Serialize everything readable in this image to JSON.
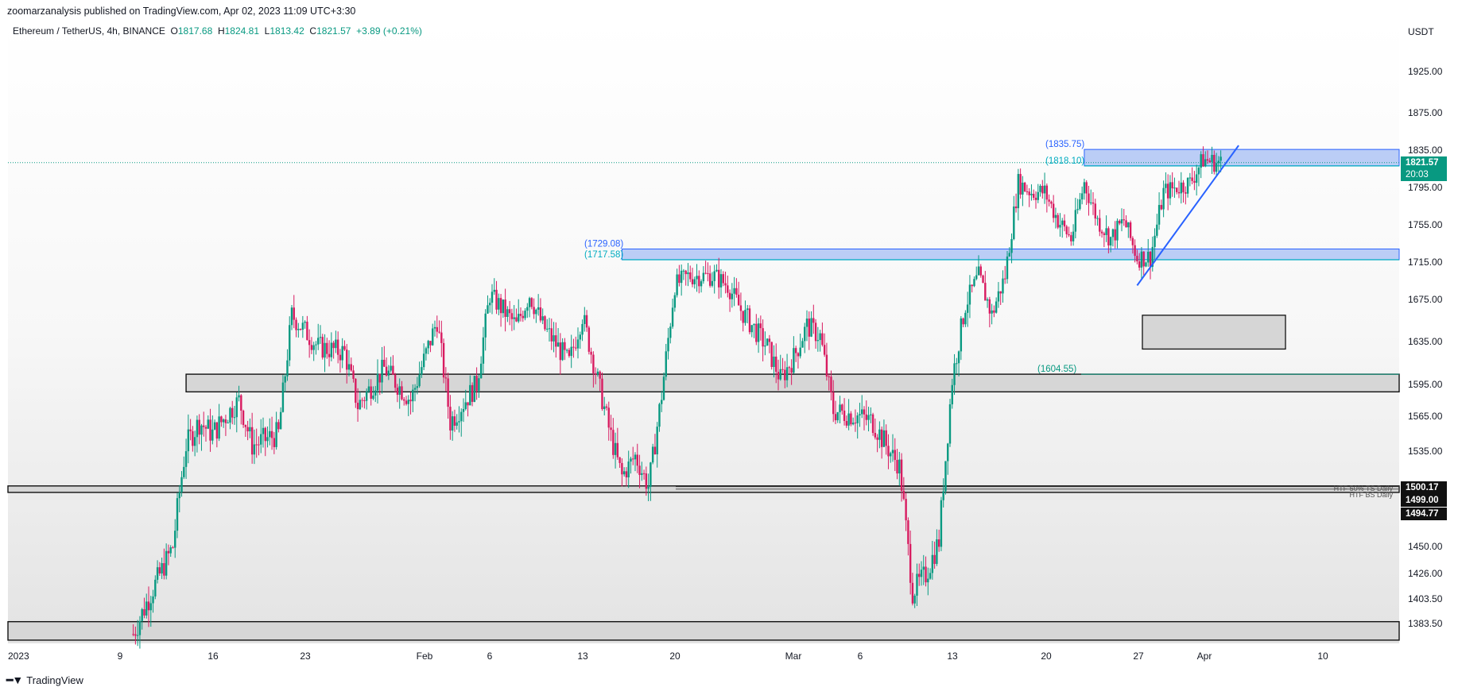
{
  "header": {
    "publisher_line": "zoomarzanalysis published on TradingView.com, Apr 02, 2023 11:09 UTC+3:30"
  },
  "legend": {
    "symbol": "Ethereum / TetherUS, 4h, BINANCE",
    "open_k": "O",
    "open": "1817.68",
    "high_k": "H",
    "high": "1824.81",
    "low_k": "L",
    "low": "1813.42",
    "close_k": "C",
    "close": "1821.57",
    "change": "+3.89 (+0.21%)"
  },
  "currency": "USDT",
  "current_price": {
    "price": "1821.57",
    "countdown": "20:03"
  },
  "black_tags": [
    "1500.17",
    "1499.00",
    "1494.77"
  ],
  "footer": {
    "brand": "TradingView"
  },
  "colors": {
    "up": "#089981",
    "down": "#d81b60",
    "accent_blue": "#2962ff",
    "zone_blue": "#bbcdf6",
    "zone_gray": "#d6d6d6"
  },
  "chart_data": {
    "type": "candlestick",
    "instrument": "Ethereum / TetherUS",
    "interval": "4h",
    "exchange": "BINANCE",
    "y_ticks": [
      "1925.00",
      "1875.00",
      "1835.00",
      "1795.00",
      "1755.00",
      "1715.00",
      "1675.00",
      "1635.00",
      "1595.00",
      "1565.00",
      "1535.00",
      "1500.00",
      "1450.00",
      "1426.00",
      "1403.50",
      "1383.50"
    ],
    "x_ticks": [
      "2023",
      "9",
      "16",
      "23",
      "Feb",
      "6",
      "13",
      "20",
      "Mar",
      "6",
      "13",
      "20",
      "27",
      "Apr",
      "10"
    ],
    "price_labels": [
      {
        "text": "(1835.75)",
        "color": "#2962ff"
      },
      {
        "text": "(1818.10)",
        "color": "#00acc1"
      },
      {
        "text": "(1729.08)",
        "color": "#2962ff"
      },
      {
        "text": "(1717.58)",
        "color": "#00acc1"
      },
      {
        "text": "(1604.55)",
        "color": "#089981"
      }
    ],
    "right_notes": [
      "HTF 50% TS Daily",
      "HTF BS Daily"
    ],
    "zones": [
      {
        "kind": "blue",
        "top": 1835.75,
        "bottom": 1818.1
      },
      {
        "kind": "blue",
        "top": 1729.08,
        "bottom": 1717.58
      },
      {
        "kind": "gray",
        "top": 1604.55,
        "bottom": 1588.0
      },
      {
        "kind": "gray",
        "top": 1500.17,
        "bottom": 1494.77
      },
      {
        "kind": "gray",
        "top": 1385.0,
        "bottom": 1370.0
      },
      {
        "kind": "gray-box",
        "top": 1660.0,
        "bottom": 1628.0
      }
    ],
    "trendline": {
      "from": {
        "date": "Mar 27",
        "price": 1690
      },
      "to": {
        "date": "Apr 02",
        "price": 1840
      }
    },
    "anchors": [
      {
        "date": "Jan 10",
        "price": 1375
      },
      {
        "date": "Jan 11",
        "price": 1400
      },
      {
        "date": "Jan 13",
        "price": 1450
      },
      {
        "date": "Jan 14",
        "price": 1540
      },
      {
        "date": "Jan 15",
        "price": 1560
      },
      {
        "date": "Jan 16",
        "price": 1550
      },
      {
        "date": "Jan 18",
        "price": 1580
      },
      {
        "date": "Jan 19",
        "price": 1540
      },
      {
        "date": "Jan 21",
        "price": 1550
      },
      {
        "date": "Jan 22",
        "price": 1660
      },
      {
        "date": "Jan 24",
        "price": 1630
      },
      {
        "date": "Jan 26",
        "price": 1625
      },
      {
        "date": "Jan 27",
        "price": 1575
      },
      {
        "date": "Jan 29",
        "price": 1610
      },
      {
        "date": "Jan 31",
        "price": 1580
      },
      {
        "date": "Feb 02",
        "price": 1655
      },
      {
        "date": "Feb 03",
        "price": 1560
      },
      {
        "date": "Feb 05",
        "price": 1595
      },
      {
        "date": "Feb 06",
        "price": 1680
      },
      {
        "date": "Feb 08",
        "price": 1650
      },
      {
        "date": "Feb 09",
        "price": 1680
      },
      {
        "date": "Feb 10",
        "price": 1650
      },
      {
        "date": "Feb 12",
        "price": 1615
      },
      {
        "date": "Feb 13",
        "price": 1660
      },
      {
        "date": "Feb 15",
        "price": 1555
      },
      {
        "date": "Feb 16",
        "price": 1510
      },
      {
        "date": "Feb 17",
        "price": 1530
      },
      {
        "date": "Feb 18",
        "price": 1500
      },
      {
        "date": "Feb 19",
        "price": 1585
      },
      {
        "date": "Feb 20",
        "price": 1690
      },
      {
        "date": "Feb 21",
        "price": 1700
      },
      {
        "date": "Feb 23",
        "price": 1700
      },
      {
        "date": "Feb 24",
        "price": 1690
      },
      {
        "date": "Feb 25",
        "price": 1665
      },
      {
        "date": "Feb 27",
        "price": 1630
      },
      {
        "date": "Feb 28",
        "price": 1600
      },
      {
        "date": "Mar 01",
        "price": 1620
      },
      {
        "date": "Mar 02",
        "price": 1650
      },
      {
        "date": "Mar 03",
        "price": 1640
      },
      {
        "date": "Mar 04",
        "price": 1570
      },
      {
        "date": "Mar 06",
        "price": 1565
      },
      {
        "date": "Mar 07",
        "price": 1560
      },
      {
        "date": "Mar 08",
        "price": 1540
      },
      {
        "date": "Mar 09",
        "price": 1520
      },
      {
        "date": "Mar 10",
        "price": 1410
      },
      {
        "date": "Mar 11",
        "price": 1425
      },
      {
        "date": "Mar 12",
        "price": 1455
      },
      {
        "date": "Mar 13",
        "price": 1600
      },
      {
        "date": "Mar 14",
        "price": 1670
      },
      {
        "date": "Mar 15",
        "price": 1700
      },
      {
        "date": "Mar 16",
        "price": 1660
      },
      {
        "date": "Mar 17",
        "price": 1700
      },
      {
        "date": "Mar 18",
        "price": 1800
      },
      {
        "date": "Mar 19",
        "price": 1790
      },
      {
        "date": "Mar 20",
        "price": 1790
      },
      {
        "date": "Mar 21",
        "price": 1760
      },
      {
        "date": "Mar 22",
        "price": 1740
      },
      {
        "date": "Mar 23",
        "price": 1800
      },
      {
        "date": "Mar 24",
        "price": 1760
      },
      {
        "date": "Mar 25",
        "price": 1740
      },
      {
        "date": "Mar 26",
        "price": 1760
      },
      {
        "date": "Mar 27",
        "price": 1720
      },
      {
        "date": "Mar 28",
        "price": 1720
      },
      {
        "date": "Mar 29",
        "price": 1790
      },
      {
        "date": "Mar 30",
        "price": 1795
      },
      {
        "date": "Mar 31",
        "price": 1800
      },
      {
        "date": "Apr 01",
        "price": 1825
      },
      {
        "date": "Apr 02",
        "price": 1821.57
      }
    ]
  }
}
